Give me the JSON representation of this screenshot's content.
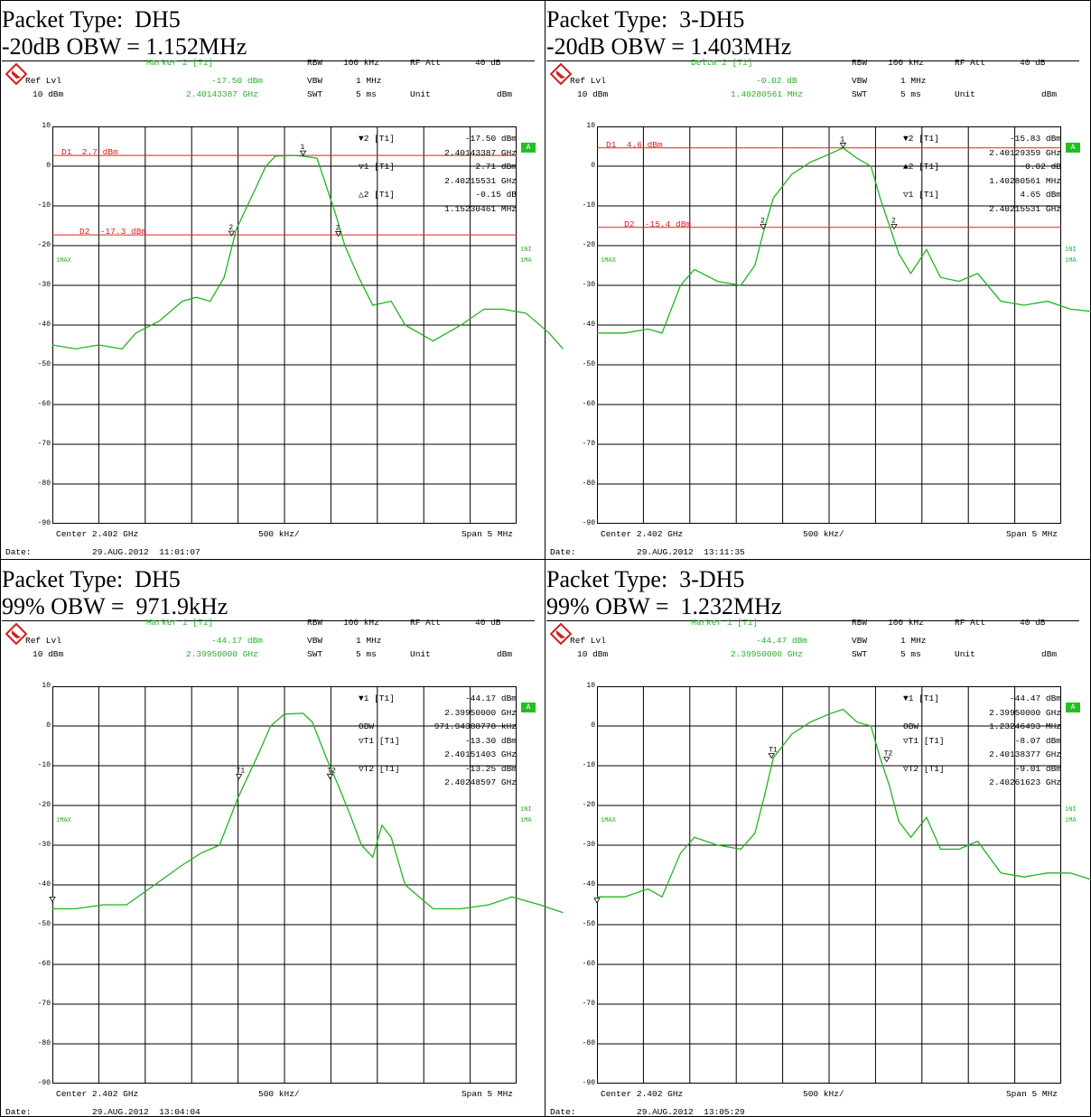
{
  "panels": [
    {
      "title_line1": "Packet Type:  DH5",
      "title_line2": "-20dB OBW = 1.152MHz",
      "header": {
        "marker_label": "Marker 2 [T1]",
        "marker_level": "-17.50 dBm",
        "marker_freq": "2.40143387 GHz",
        "ref_lvl": "Ref Lvl",
        "ref_val": "10 dBm",
        "rbw": "RBW",
        "rbw_val": "100 kHz",
        "vbw": "VBW",
        "vbw_val": "1 MHz",
        "swt": "SWT",
        "swt_val": "5 ms",
        "rfatt": "RF Att",
        "rfatt_val": "40 dB",
        "unit": "Unit",
        "unit_val": "dBm"
      },
      "readout": [
        [
          "▼2 [T1]",
          "-17.50 dBm"
        ],
        [
          "",
          "2.40143387 GHz"
        ],
        [
          "▽1 [T1]",
          "2.71 dBm"
        ],
        [
          "",
          "2.40215531 GHz"
        ],
        [
          "△2 [T1]",
          "-0.15 dB"
        ],
        [
          "",
          "1.15230461 MHz"
        ]
      ],
      "lines": [
        {
          "label": "D1  2.7 dBm",
          "level": 2.7
        },
        {
          "label": "D2  -17.3 dBm",
          "level": -17.3
        }
      ],
      "markers": [
        {
          "label": "1",
          "x": 2.4022,
          "y": 2.7
        },
        {
          "label": "2",
          "x": 2.40143,
          "y": -17.5
        },
        {
          "label": "2",
          "x": 2.40258,
          "y": -17.6
        }
      ],
      "footer": {
        "center": "Center 2.402 GHz",
        "div": "500 kHz/",
        "span": "Span 5 MHz",
        "date_label": "Date:",
        "date": "29.AUG.2012  11:01:07"
      },
      "side": {
        "a": "A",
        "ini": "1NI",
        "ima": "1MA",
        "max": "1MAX"
      },
      "trace": [
        [
          2.3995,
          -45
        ],
        [
          2.39975,
          -46
        ],
        [
          2.4,
          -45
        ],
        [
          2.40025,
          -46
        ],
        [
          2.4004,
          -42
        ],
        [
          2.40065,
          -39
        ],
        [
          2.4009,
          -34
        ],
        [
          2.40105,
          -33
        ],
        [
          2.4012,
          -34
        ],
        [
          2.40135,
          -28
        ],
        [
          2.40148,
          -16
        ],
        [
          2.4016,
          -10
        ],
        [
          2.4017,
          -5
        ],
        [
          2.4018,
          0
        ],
        [
          2.4019,
          2.5
        ],
        [
          2.4021,
          2.7
        ],
        [
          2.4022,
          2.5
        ],
        [
          2.40235,
          2.0
        ],
        [
          2.40245,
          -5
        ],
        [
          2.40255,
          -12
        ],
        [
          2.40265,
          -20
        ],
        [
          2.4028,
          -28
        ],
        [
          2.40295,
          -35
        ],
        [
          2.40315,
          -34
        ],
        [
          2.4033,
          -40
        ],
        [
          2.4036,
          -44
        ],
        [
          2.4039,
          -40
        ],
        [
          2.40415,
          -36
        ],
        [
          2.40435,
          -36
        ],
        [
          2.4046,
          -37
        ],
        [
          2.40485,
          -42
        ],
        [
          2.405,
          -46
        ]
      ]
    },
    {
      "title_line1": "Packet Type:  3-DH5",
      "title_line2": "-20dB OBW = 1.403MHz",
      "header": {
        "marker_label": "Delta 2 [T1]",
        "marker_level": "-0.02 dB",
        "marker_freq": "1.40280561 MHz",
        "ref_lvl": "Ref Lvl",
        "ref_val": "10 dBm",
        "rbw": "RBW",
        "rbw_val": "100 kHz",
        "vbw": "VBW",
        "vbw_val": "1 MHz",
        "swt": "SWT",
        "swt_val": "5 ms",
        "rfatt": "RF Att",
        "rfatt_val": "40 dB",
        "unit": "Unit",
        "unit_val": "dBm"
      },
      "readout": [
        [
          "▼2 [T1]",
          "-15.83 dBm"
        ],
        [
          "",
          "2.40129359 GHz"
        ],
        [
          "▲2 [T1]",
          "-0.02 dB"
        ],
        [
          "",
          "1.40280561 MHz"
        ],
        [
          "▽1 [T1]",
          "4.65 dBm"
        ],
        [
          "",
          "2.40215531 GHz"
        ]
      ],
      "lines": [
        {
          "label": "D1  4.6 dBm",
          "level": 4.6
        },
        {
          "label": "D2  -15.4 dBm",
          "level": -15.4
        }
      ],
      "markers": [
        {
          "label": "1",
          "x": 2.40215,
          "y": 4.65
        },
        {
          "label": "2",
          "x": 2.40129,
          "y": -15.8
        },
        {
          "label": "2",
          "x": 2.4027,
          "y": -15.8
        }
      ],
      "footer": {
        "center": "Center 2.402 GHz",
        "div": "500 kHz/",
        "span": "Span 5 MHz",
        "date_label": "Date:",
        "date": "29.AUG.2012  13:11:35"
      },
      "side": {
        "a": "A",
        "ini": "1NI",
        "ima": "1MA",
        "max": "1MAX"
      },
      "trace": [
        [
          2.3995,
          -42
        ],
        [
          2.3998,
          -42
        ],
        [
          2.40005,
          -41
        ],
        [
          2.4002,
          -42
        ],
        [
          2.4004,
          -30
        ],
        [
          2.40055,
          -26
        ],
        [
          2.4008,
          -29
        ],
        [
          2.40105,
          -30
        ],
        [
          2.4012,
          -25
        ],
        [
          2.4013,
          -16
        ],
        [
          2.4014,
          -8
        ],
        [
          2.4016,
          -2
        ],
        [
          2.4018,
          1
        ],
        [
          2.402,
          3
        ],
        [
          2.40215,
          4.6
        ],
        [
          2.4023,
          2
        ],
        [
          2.40245,
          0
        ],
        [
          2.40255,
          -8
        ],
        [
          2.40265,
          -15
        ],
        [
          2.40275,
          -22
        ],
        [
          2.40288,
          -27
        ],
        [
          2.40305,
          -21
        ],
        [
          2.4032,
          -28
        ],
        [
          2.4034,
          -29
        ],
        [
          2.4036,
          -27
        ],
        [
          2.40385,
          -34
        ],
        [
          2.4041,
          -35
        ],
        [
          2.40435,
          -34
        ],
        [
          2.4046,
          -36
        ],
        [
          2.405,
          -37
        ]
      ]
    },
    {
      "title_line1": "Packet Type:  DH5",
      "title_line2": "99% OBW =  971.9kHz",
      "header": {
        "marker_label": "Marker 1 [T1]",
        "marker_level": "-44.17 dBm",
        "marker_freq": "2.39950000 GHz",
        "ref_lvl": "Ref Lvl",
        "ref_val": "10 dBm",
        "rbw": "RBW",
        "rbw_val": "100 kHz",
        "vbw": "VBW",
        "vbw_val": "1 MHz",
        "swt": "SWT",
        "swt_val": "5 ms",
        "rfatt": "RF Att",
        "rfatt_val": "40 dB",
        "unit": "Unit",
        "unit_val": "dBm"
      },
      "readout": [
        [
          "▼1 [T1]",
          "-44.17 dBm"
        ],
        [
          "",
          "2.39950000 GHz"
        ],
        [
          "OBW",
          "971.94388778 kHz"
        ],
        [
          "▽T1 [T1]",
          "-13.30 dBm"
        ],
        [
          "",
          "2.40151403 GHz"
        ],
        [
          "▽T2 [T1]",
          "-13.25 dBm"
        ],
        [
          "",
          "2.40248597 GHz"
        ]
      ],
      "lines": [],
      "markers": [
        {
          "label": "T1",
          "x": 2.40151,
          "y": -13.3
        },
        {
          "label": "T2",
          "x": 2.40249,
          "y": -13.25
        },
        {
          "label": "",
          "x": 2.3995,
          "y": -44.17
        }
      ],
      "footer": {
        "center": "Center 2.402 GHz",
        "div": "500 kHz/",
        "span": "Span 5 MHz",
        "date_label": "Date:",
        "date": "29.AUG.2012  13:04:04"
      },
      "side": {
        "a": "A",
        "ini": "1NI",
        "ima": "1MA",
        "max": "1MAX"
      },
      "trace": [
        [
          2.3995,
          -46
        ],
        [
          2.39975,
          -46
        ],
        [
          2.40005,
          -45
        ],
        [
          2.4003,
          -45
        ],
        [
          2.4006,
          -40
        ],
        [
          2.4009,
          -35
        ],
        [
          2.4011,
          -32
        ],
        [
          2.4013,
          -30
        ],
        [
          2.4015,
          -18
        ],
        [
          2.4017,
          -8
        ],
        [
          2.40185,
          0
        ],
        [
          2.402,
          3
        ],
        [
          2.4022,
          3.2
        ],
        [
          2.4023,
          1
        ],
        [
          2.40245,
          -8
        ],
        [
          2.40258,
          -15
        ],
        [
          2.4027,
          -22
        ],
        [
          2.40283,
          -30
        ],
        [
          2.40295,
          -33
        ],
        [
          2.40305,
          -25
        ],
        [
          2.40315,
          -28
        ],
        [
          2.4033,
          -40
        ],
        [
          2.4036,
          -46
        ],
        [
          2.4039,
          -46
        ],
        [
          2.4042,
          -45
        ],
        [
          2.40445,
          -43
        ],
        [
          2.40475,
          -45
        ],
        [
          2.405,
          -47
        ]
      ]
    },
    {
      "title_line1": "Packet Type:  3-DH5",
      "title_line2": "99% OBW =  1.232MHz",
      "header": {
        "marker_label": "Marker 1 [T1]",
        "marker_level": "-44.47 dBm",
        "marker_freq": "2.39950000 GHz",
        "ref_lvl": "Ref Lvl",
        "ref_val": "10 dBm",
        "rbw": "RBW",
        "rbw_val": "100 kHz",
        "vbw": "VBW",
        "vbw_val": "1 MHz",
        "swt": "SWT",
        "swt_val": "5 ms",
        "rfatt": "RF Att",
        "rfatt_val": "40 dB",
        "unit": "Unit",
        "unit_val": "dBm"
      },
      "readout": [
        [
          "▼1 [T1]",
          "-44.47 dBm"
        ],
        [
          "",
          "2.39950000 GHz"
        ],
        [
          "OBW",
          "1.23246493 MHz"
        ],
        [
          "▽T1 [T1]",
          "-8.07 dBm"
        ],
        [
          "",
          "2.40138377 GHz"
        ],
        [
          "▽T2 [T1]",
          "-9.01 dBm"
        ],
        [
          "",
          "2.40261623 GHz"
        ]
      ],
      "lines": [],
      "markers": [
        {
          "label": "T1",
          "x": 2.40138,
          "y": -8.07
        },
        {
          "label": "T2",
          "x": 2.40262,
          "y": -9.01
        },
        {
          "label": "",
          "x": 2.3995,
          "y": -44.47
        }
      ],
      "footer": {
        "center": "Center 2.402 GHz",
        "div": "500 kHz/",
        "span": "Span 5 MHz",
        "date_label": "Date:",
        "date": "29.AUG.2012  13:05:29"
      },
      "side": {
        "a": "A",
        "ini": "1NI",
        "ima": "1MA",
        "max": "1MAX"
      },
      "trace": [
        [
          2.3995,
          -43
        ],
        [
          2.3998,
          -43
        ],
        [
          2.40005,
          -41
        ],
        [
          2.4002,
          -43
        ],
        [
          2.4004,
          -32
        ],
        [
          2.40055,
          -28
        ],
        [
          2.4008,
          -30
        ],
        [
          2.40105,
          -31
        ],
        [
          2.4012,
          -27
        ],
        [
          2.4013,
          -18
        ],
        [
          2.4014,
          -8
        ],
        [
          2.4016,
          -2
        ],
        [
          2.4018,
          1
        ],
        [
          2.402,
          3
        ],
        [
          2.40215,
          4.2
        ],
        [
          2.4023,
          1
        ],
        [
          2.40245,
          0
        ],
        [
          2.40255,
          -8
        ],
        [
          2.40265,
          -15
        ],
        [
          2.40275,
          -24
        ],
        [
          2.40288,
          -28
        ],
        [
          2.40305,
          -23
        ],
        [
          2.4032,
          -31
        ],
        [
          2.4034,
          -31
        ],
        [
          2.4036,
          -29
        ],
        [
          2.40385,
          -37
        ],
        [
          2.4041,
          -38
        ],
        [
          2.40435,
          -37
        ],
        [
          2.4046,
          -37
        ],
        [
          2.405,
          -40
        ]
      ]
    }
  ],
  "chart_data": [
    {
      "type": "line",
      "ylim": [
        -90,
        10
      ],
      "xlim": [
        2.3995,
        2.4045
      ],
      "x_unit": "GHz",
      "y_unit": "dBm",
      "yticks": [
        "10",
        "0",
        "-10",
        "-20",
        "-30",
        "-40",
        "-50",
        "-60",
        "-70",
        "-80",
        "-90"
      ]
    },
    {
      "type": "line",
      "ylim": [
        -90,
        10
      ],
      "xlim": [
        2.3995,
        2.4045
      ],
      "x_unit": "GHz",
      "y_unit": "dBm",
      "yticks": [
        "10",
        "0",
        "-10",
        "-20",
        "-30",
        "-40",
        "-50",
        "-60",
        "-70",
        "-80",
        "-90"
      ]
    },
    {
      "type": "line",
      "ylim": [
        -90,
        10
      ],
      "xlim": [
        2.3995,
        2.4045
      ],
      "x_unit": "GHz",
      "y_unit": "dBm",
      "yticks": [
        "10",
        "0",
        "-10",
        "-20",
        "-30",
        "-40",
        "-50",
        "-60",
        "-70",
        "-80",
        "-90"
      ]
    },
    {
      "type": "line",
      "ylim": [
        -90,
        10
      ],
      "xlim": [
        2.3995,
        2.4045
      ],
      "x_unit": "GHz",
      "y_unit": "dBm",
      "yticks": [
        "10",
        "0",
        "-10",
        "-20",
        "-30",
        "-40",
        "-50",
        "-60",
        "-70",
        "-80",
        "-90"
      ]
    }
  ],
  "colors": {
    "trace": "#22b422",
    "limit": "#e02020",
    "label_green": "#22b422"
  }
}
